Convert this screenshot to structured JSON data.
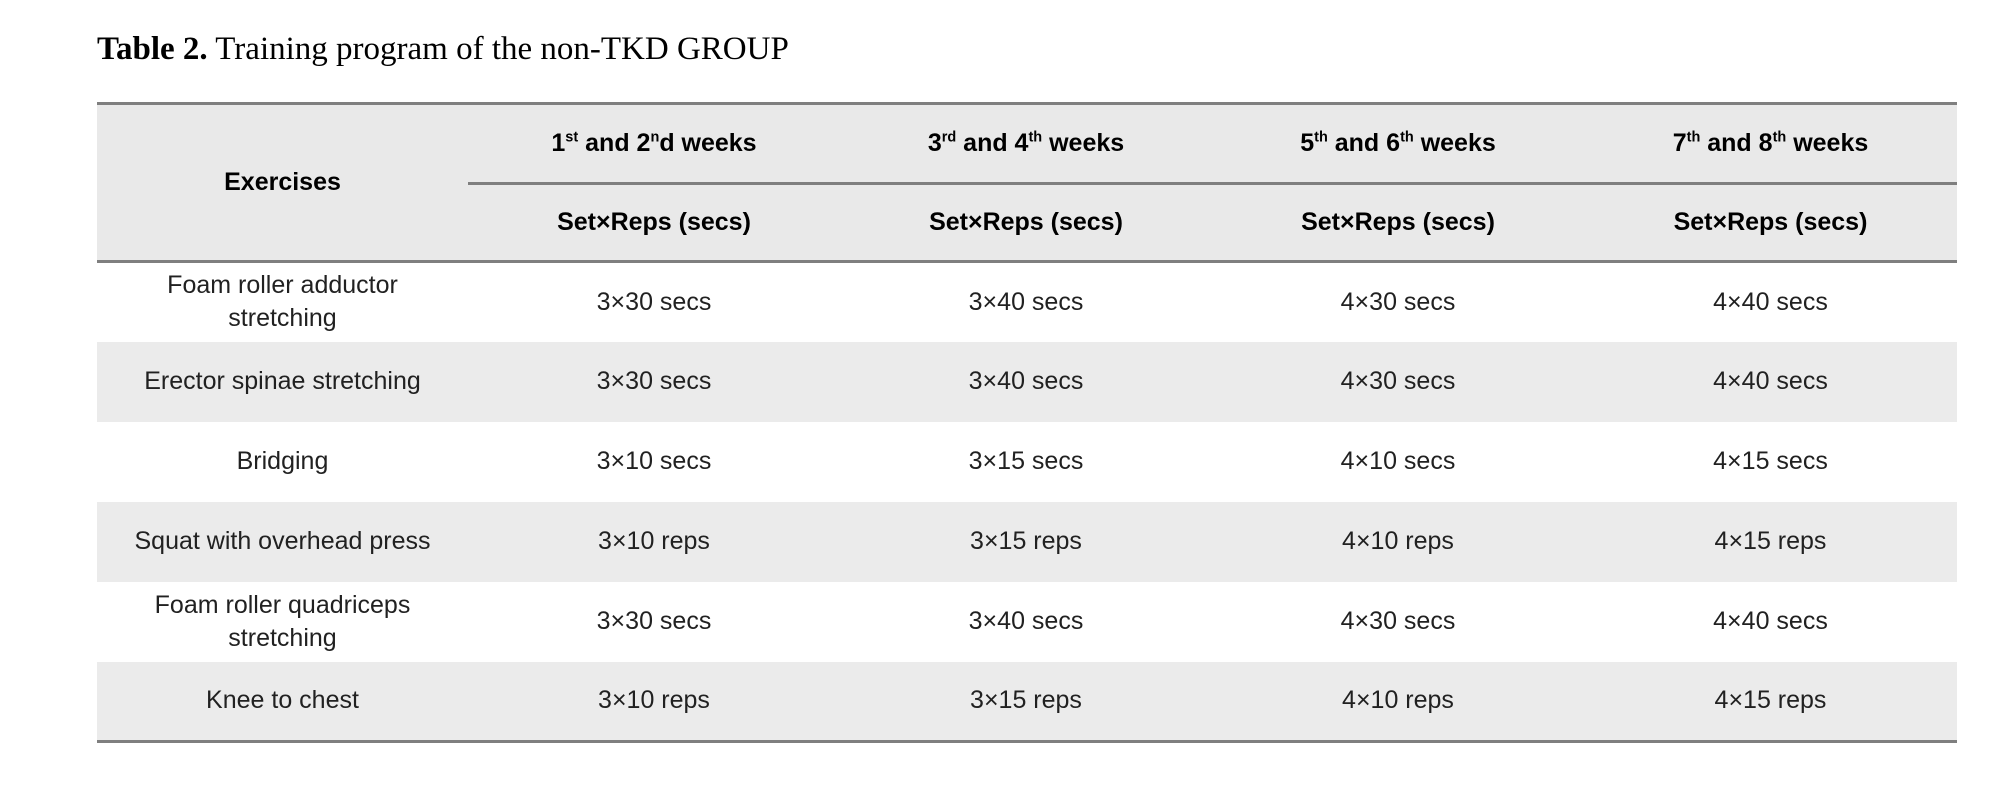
{
  "title": {
    "label": "Table 2.",
    "text": " Training program of the non-TKD GROUP"
  },
  "table": {
    "exercises_header": "Exercises",
    "week_headers": [
      "1^{st} and 2^{n}d weeks",
      "3^{rd} and 4^{th} weeks",
      "5^{th} and 6^{th} weeks",
      "7^{th} and 8^{th} weeks"
    ],
    "subheader": "Set×Reps (secs)",
    "rows": [
      {
        "exercise": "Foam roller adductor\nstretching",
        "values": [
          "3×30 secs",
          "3×40 secs",
          "4×30 secs",
          "4×40 secs"
        ]
      },
      {
        "exercise": "Erector spinae stretching",
        "values": [
          "3×30 secs",
          "3×40 secs",
          "4×30 secs",
          "4×40 secs"
        ]
      },
      {
        "exercise": "Bridging",
        "values": [
          "3×10 secs",
          "3×15 secs",
          "4×10 secs",
          "4×15 secs"
        ]
      },
      {
        "exercise": "Squat with overhead press",
        "values": [
          "3×10 reps",
          "3×15 reps",
          "4×10 reps",
          "4×15 reps"
        ]
      },
      {
        "exercise": "Foam roller quadriceps\nstretching",
        "values": [
          "3×30 secs",
          "3×40 secs",
          "4×30 secs",
          "4×40 secs"
        ]
      },
      {
        "exercise": "Knee to chest",
        "values": [
          "3×10 reps",
          "3×15 reps",
          "4×10 reps",
          "4×15 reps"
        ]
      }
    ],
    "colors": {
      "header_bg": "#e9e9e9",
      "stripe_bg": "#ebebeb",
      "border": "#7f7f7f",
      "data_text": "#212121",
      "header_text": "#000000"
    }
  }
}
